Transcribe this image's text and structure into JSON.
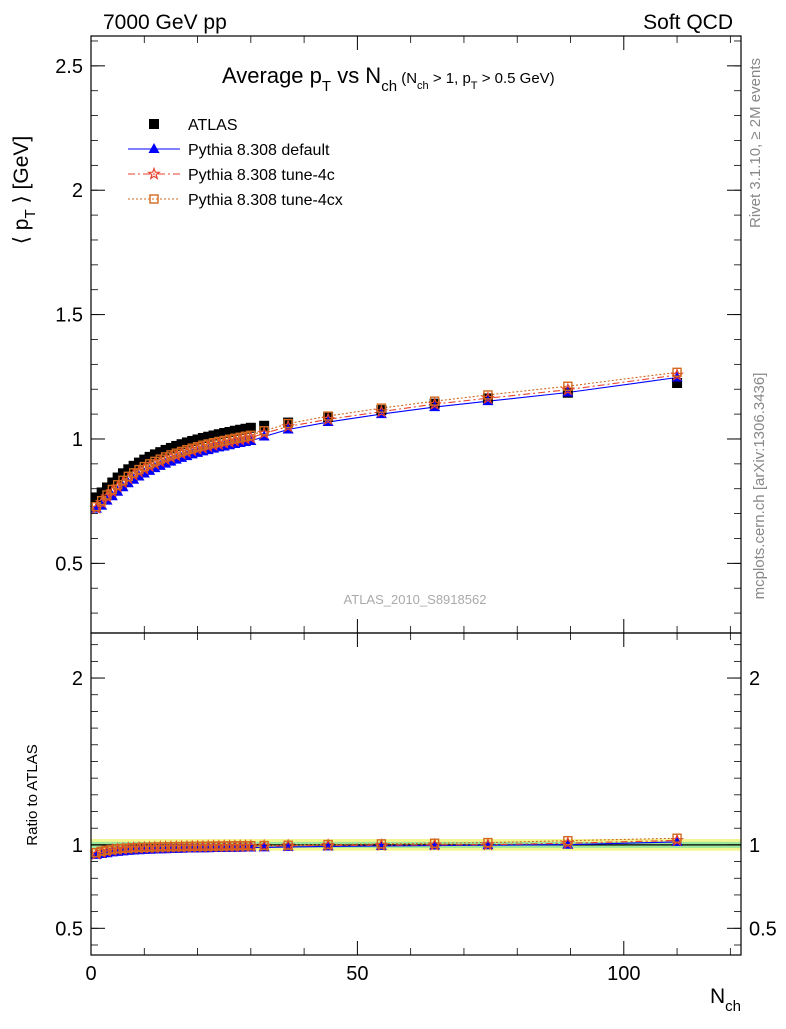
{
  "header": {
    "left": "7000 GeV pp",
    "right": "Soft QCD"
  },
  "title": {
    "main_pre": "Average p",
    "main_sub1": "T",
    "main_mid": " vs N",
    "main_sub2": "ch",
    "cond_a": " (N",
    "cond_sub_ch": "ch",
    "cond_b": " > 1, p",
    "cond_sub_t": "T",
    "cond_c": " > 0.5 GeV)"
  },
  "side_labels": {
    "rivet": "Rivet 3.1.10, ≥ 2M events",
    "mcplots": "mcplots.cern.ch [arXiv:1306.3436]"
  },
  "analysis_tag": "ATLAS_2010_S8918562",
  "chart_data": [
    {
      "type": "scatter",
      "panel": "main",
      "ylabel": "⟨ p_T ⟩ [GeV]",
      "ylabel_parts": {
        "open": "⟨ p",
        "sub": "T",
        "close": " ⟩ [GeV]"
      },
      "xlabel": "N_ch",
      "xlabel_parts": {
        "main": "N",
        "sub": "ch"
      },
      "xlim": [
        0,
        122
      ],
      "ylim": [
        0.22,
        2.62
      ],
      "yticks": [
        0.5,
        1,
        1.5,
        2,
        2.5
      ],
      "ytick_labels": [
        "0.5",
        "1",
        "1.5",
        "2",
        "2.5"
      ],
      "xticks": [
        0,
        50,
        100
      ],
      "xtick_labels": [
        "0",
        "50",
        "100"
      ],
      "legend_position": "top-left",
      "x": [
        1,
        2,
        3,
        4,
        5,
        6,
        7,
        8,
        9,
        10,
        11,
        12,
        13,
        14,
        15,
        16,
        17,
        18,
        19,
        20,
        21,
        22,
        23,
        24,
        25,
        26,
        27,
        28,
        29,
        30,
        32.5,
        37,
        44.5,
        54.5,
        64.5,
        74.5,
        89.5,
        110
      ],
      "series": [
        {
          "name": "ATLAS",
          "color": "#000000",
          "marker": "filled-square",
          "values": [
            0.765,
            0.785,
            0.805,
            0.825,
            0.845,
            0.862,
            0.878,
            0.892,
            0.905,
            0.917,
            0.928,
            0.938,
            0.947,
            0.956,
            0.964,
            0.972,
            0.979,
            0.986,
            0.992,
            0.998,
            1.004,
            1.009,
            1.014,
            1.019,
            1.024,
            1.028,
            1.033,
            1.037,
            1.041,
            1.045,
            1.053,
            1.066,
            1.088,
            1.116,
            1.142,
            1.163,
            1.186,
            1.225
          ]
        },
        {
          "name": "Pythia 8.308 default",
          "color": "#0000ff",
          "marker": "filled-triangle",
          "values": [
            0.72,
            0.732,
            0.752,
            0.77,
            0.788,
            0.806,
            0.822,
            0.836,
            0.849,
            0.861,
            0.872,
            0.883,
            0.892,
            0.901,
            0.909,
            0.917,
            0.924,
            0.931,
            0.938,
            0.944,
            0.95,
            0.955,
            0.961,
            0.966,
            0.97,
            0.975,
            0.98,
            0.984,
            0.988,
            0.992,
            1.01,
            1.038,
            1.068,
            1.1,
            1.128,
            1.152,
            1.187,
            1.247
          ]
        },
        {
          "name": "Pythia 8.308 tune-4c",
          "color": "#e8412c",
          "marker": "open-star",
          "values": [
            0.722,
            0.745,
            0.768,
            0.789,
            0.808,
            0.825,
            0.841,
            0.855,
            0.868,
            0.88,
            0.89,
            0.9,
            0.909,
            0.918,
            0.926,
            0.933,
            0.94,
            0.947,
            0.953,
            0.959,
            0.964,
            0.97,
            0.975,
            0.979,
            0.984,
            0.988,
            0.993,
            0.997,
            1.001,
            1.005,
            1.023,
            1.05,
            1.079,
            1.11,
            1.14,
            1.164,
            1.198,
            1.257
          ]
        },
        {
          "name": "Pythia 8.308 tune-4cx",
          "color": "#d2691e",
          "marker": "open-square",
          "values": [
            0.728,
            0.752,
            0.775,
            0.797,
            0.816,
            0.834,
            0.85,
            0.864,
            0.877,
            0.889,
            0.9,
            0.91,
            0.919,
            0.928,
            0.936,
            0.943,
            0.95,
            0.957,
            0.963,
            0.969,
            0.975,
            0.98,
            0.985,
            0.99,
            0.994,
            0.999,
            1.003,
            1.007,
            1.011,
            1.015,
            1.033,
            1.062,
            1.092,
            1.124,
            1.152,
            1.177,
            1.212,
            1.268
          ]
        }
      ]
    },
    {
      "type": "scatter",
      "panel": "ratio",
      "ylabel": "Ratio to ATLAS",
      "xlabel": "N_ch",
      "xlim": [
        0,
        122
      ],
      "ylim": [
        0.34,
        2.27
      ],
      "yticks": [
        0.5,
        1,
        2
      ],
      "ytick_labels": [
        "0.5",
        "1",
        "2"
      ],
      "xticks": [
        0,
        50,
        100
      ],
      "xtick_labels": [
        "0",
        "50",
        "100"
      ],
      "reference_line": 1,
      "bands": [
        {
          "color": "#f4f490",
          "lower": 0.965,
          "upper": 1.035
        },
        {
          "color": "#9ae69a",
          "lower": 0.982,
          "upper": 1.018
        }
      ],
      "x": [
        1,
        2,
        3,
        4,
        5,
        6,
        7,
        8,
        9,
        10,
        11,
        12,
        13,
        14,
        15,
        16,
        17,
        18,
        19,
        20,
        21,
        22,
        23,
        24,
        25,
        26,
        27,
        28,
        29,
        30,
        32.5,
        37,
        44.5,
        54.5,
        64.5,
        74.5,
        89.5,
        110
      ],
      "series": [
        {
          "name": "Pythia 8.308 default",
          "color": "#0000ff",
          "marker": "filled-triangle",
          "values": [
            0.94,
            0.945,
            0.95,
            0.955,
            0.958,
            0.961,
            0.964,
            0.966,
            0.968,
            0.97,
            0.971,
            0.972,
            0.973,
            0.974,
            0.975,
            0.976,
            0.977,
            0.978,
            0.978,
            0.979,
            0.98,
            0.98,
            0.981,
            0.981,
            0.982,
            0.982,
            0.983,
            0.983,
            0.984,
            0.984,
            0.985,
            0.988,
            0.991,
            0.994,
            0.996,
            0.998,
            1.001,
            1.018
          ]
        },
        {
          "name": "Pythia 8.308 tune-4c",
          "color": "#e8412c",
          "marker": "open-star",
          "values": [
            0.945,
            0.955,
            0.962,
            0.968,
            0.972,
            0.975,
            0.978,
            0.98,
            0.981,
            0.982,
            0.983,
            0.984,
            0.985,
            0.986,
            0.986,
            0.987,
            0.987,
            0.988,
            0.988,
            0.989,
            0.989,
            0.99,
            0.99,
            0.99,
            0.991,
            0.991,
            0.991,
            0.992,
            0.992,
            0.992,
            0.993,
            0.995,
            0.997,
            0.998,
            1.0,
            1.001,
            1.01,
            1.027
          ]
        },
        {
          "name": "Pythia 8.308 tune-4cx",
          "color": "#d2691e",
          "marker": "open-square",
          "values": [
            0.953,
            0.962,
            0.968,
            0.972,
            0.976,
            0.979,
            0.981,
            0.983,
            0.984,
            0.985,
            0.986,
            0.987,
            0.988,
            0.988,
            0.989,
            0.989,
            0.99,
            0.99,
            0.991,
            0.991,
            0.992,
            0.992,
            0.993,
            0.993,
            0.993,
            0.994,
            0.994,
            0.995,
            0.995,
            0.995,
            0.996,
            0.998,
            1.002,
            1.006,
            1.01,
            1.014,
            1.025,
            1.04
          ]
        }
      ]
    }
  ]
}
